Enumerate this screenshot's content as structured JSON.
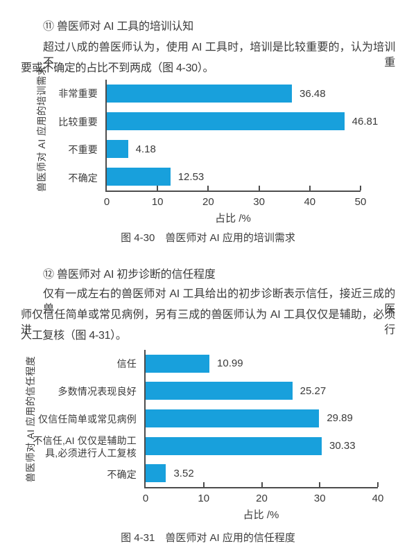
{
  "page": {
    "background_color": "#ffffff",
    "text_color": "#3a3a3a"
  },
  "sections": [
    {
      "heading": "⑪ 兽医师对 AI 工具的培训认知",
      "paragraph_lines": [
        "超过八成的兽医师认为，使用 AI 工具时，培训是比较重要的，认为培训不重",
        "要或不确定的占比不到两成（图 4-30）。"
      ]
    },
    {
      "heading": "⑫ 兽医师对 AI 初步诊断的信任程度",
      "paragraph_lines": [
        "仅有一成左右的兽医师对 AI 工具给出的初步诊断表示信任，接近三成的兽医",
        "师仅信任简单或常见病例，另有三成的兽医师认为 AI 工具仅仅是辅助，必须进行",
        "人工复核（图 4-31）。"
      ]
    }
  ],
  "chart_data": [
    {
      "type": "bar",
      "orientation": "horizontal",
      "categories": [
        "非常重要",
        "比较重要",
        "不重要",
        "不确定"
      ],
      "values": [
        36.48,
        46.81,
        4.18,
        12.53
      ],
      "value_labels": [
        "36.48",
        "46.81",
        "4.18",
        "12.53"
      ],
      "xlabel": "占比 /%",
      "ylabel": "兽医师对 AI 应用的培训需求",
      "caption": "图 4-30　兽医师对 AI 应用的培训需求",
      "xlim": [
        0,
        50
      ],
      "xticks": [
        0,
        10,
        20,
        30,
        40,
        50
      ],
      "grid": false,
      "legend": false,
      "bar_color": "#18a0dc",
      "axis_color": "#4c4c4c"
    },
    {
      "type": "bar",
      "orientation": "horizontal",
      "categories": [
        "信任",
        "多数情况表现良好",
        "仅信任简单或常见病例",
        "不信任,AI 仅仅是辅助工\n具,必须进行人工复核",
        "不确定"
      ],
      "values": [
        10.99,
        25.27,
        29.89,
        30.33,
        3.52
      ],
      "value_labels": [
        "10.99",
        "25.27",
        "29.89",
        "30.33",
        "3.52"
      ],
      "xlabel": "占比 /%",
      "ylabel": "兽医师对 AI 应用的信任程度",
      "caption": "图 4-31　兽医师对 AI 应用的信任程度",
      "xlim": [
        0,
        40
      ],
      "xticks": [
        0,
        10,
        20,
        30,
        40
      ],
      "grid": false,
      "legend": false,
      "bar_color": "#18a0dc",
      "axis_color": "#4c4c4c"
    }
  ]
}
